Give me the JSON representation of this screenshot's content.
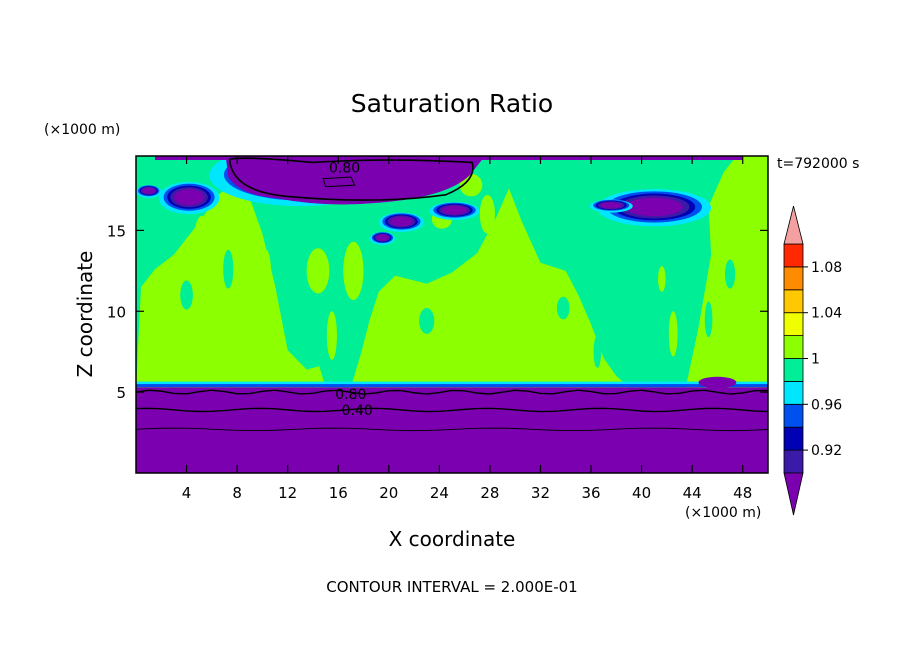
{
  "chart_data": {
    "type": "heatmap",
    "title": "Saturation Ratio",
    "xlabel": "X coordinate",
    "ylabel": "Z coordinate",
    "x_unit": "(×1000 m)",
    "y_unit": "(×1000 m)",
    "time_label": "t=792000 s",
    "footer": "CONTOUR INTERVAL = 2.000E-01",
    "xlim": [
      0,
      50
    ],
    "ylim": [
      0,
      19.6
    ],
    "x_ticks": [
      4,
      8,
      12,
      16,
      20,
      24,
      28,
      32,
      36,
      40,
      44,
      48
    ],
    "y_ticks": [
      5,
      10,
      15
    ],
    "grid": false,
    "colorbar": {
      "levels": [
        0.9,
        0.92,
        0.94,
        0.96,
        0.98,
        1.0,
        1.02,
        1.04,
        1.06,
        1.08,
        1.1
      ],
      "labels": [
        "0.92",
        "0.96",
        "1",
        "1.04",
        "1.08"
      ],
      "colors": [
        "#3c1aa8",
        "#0000b4",
        "#0050f0",
        "#00e6ff",
        "#00ee96",
        "#8cff00",
        "#f0ff00",
        "#ffc800",
        "#ff8c00",
        "#ff2800",
        "#f4a0a0"
      ],
      "under_color": "#7a00b0",
      "over_color": "#f4a0a0"
    },
    "regions": {
      "lower_dry_layer": {
        "value": "< 0.9",
        "z_top": 5.3
      },
      "mid_band": {
        "value": "0.98–1.00",
        "z_range": [
          5.3,
          19.6
        ]
      },
      "moist_columns": {
        "value": "1.00–1.02",
        "x_centers": [
          6,
          26,
          34,
          48
        ]
      },
      "upper_dry_pockets": {
        "value": "< 0.9",
        "z_range": [
          16.5,
          19.6
        ]
      }
    },
    "contour_labels": [
      {
        "text": "0.80",
        "x": 16.5,
        "z": 18.9
      },
      {
        "text": "0.80",
        "x": 17.0,
        "z": 4.9
      },
      {
        "text": "0.40",
        "x": 17.5,
        "z": 3.9
      }
    ]
  }
}
